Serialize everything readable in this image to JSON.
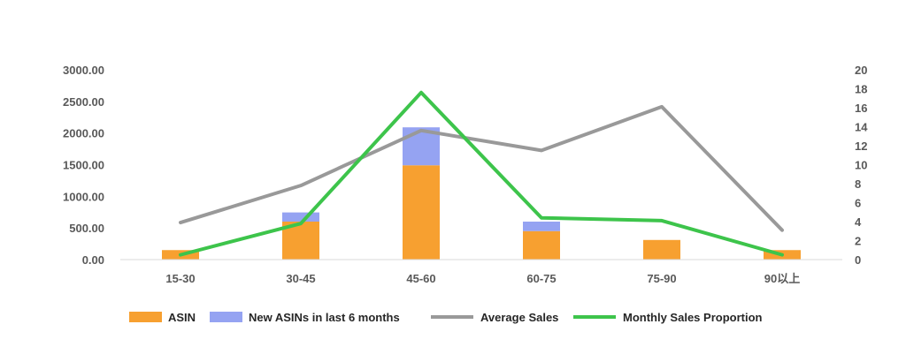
{
  "chart_data": {
    "type": "bar",
    "categories": [
      "15-30",
      "30-45",
      "45-60",
      "60-75",
      "75-90",
      "90以上"
    ],
    "series": [
      {
        "name": "ASIN",
        "kind": "bar",
        "axis": "left",
        "color": "#F7A030",
        "values": [
          150,
          600,
          1490,
          450,
          310,
          150
        ]
      },
      {
        "name": "New ASINs in last 6 months",
        "kind": "bar",
        "axis": "left",
        "color": "#95A3F2",
        "values": [
          0,
          145,
          600,
          150,
          0,
          0
        ]
      },
      {
        "name": "Average Sales",
        "kind": "line",
        "axis": "right",
        "color": "#999999",
        "values": [
          3.9,
          7.8,
          13.6,
          11.5,
          16.1,
          3.1
        ]
      },
      {
        "name": "Monthly Sales Proportion",
        "kind": "line",
        "axis": "right",
        "color": "#3DC44B",
        "values": [
          0.5,
          3.8,
          17.6,
          4.4,
          4.1,
          0.5
        ]
      }
    ],
    "y_left": {
      "min": 0,
      "max": 3000,
      "step": 500,
      "tick_labels": [
        "0.00",
        "500.00",
        "1000.00",
        "1500.00",
        "2000.00",
        "2500.00",
        "3000.00"
      ]
    },
    "y_right": {
      "min": 0,
      "max": 20,
      "step": 2,
      "tick_labels": [
        "0",
        "2",
        "4",
        "6",
        "8",
        "10",
        "12",
        "14",
        "16",
        "18",
        "20"
      ]
    },
    "grid": false,
    "legend_position": "bottom",
    "stacked": true
  }
}
